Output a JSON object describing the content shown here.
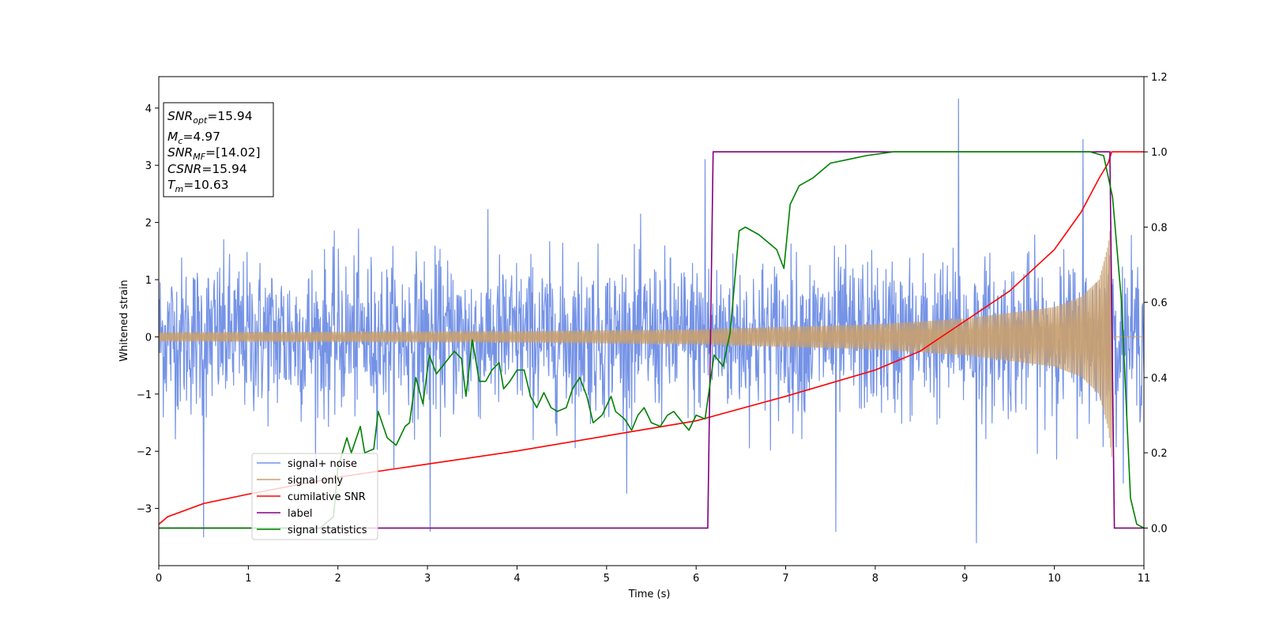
{
  "chart_data": {
    "type": "line",
    "xlabel": "Time (s)",
    "ylabel": "Whitened strain",
    "xlim": [
      0,
      11
    ],
    "ylim": [
      -4.0,
      4.55
    ],
    "ylim_right": [
      -0.1,
      1.2
    ],
    "xticks": [
      "0",
      "1",
      "2",
      "3",
      "4",
      "5",
      "6",
      "7",
      "8",
      "9",
      "10",
      "11"
    ],
    "yticks_left": [
      "−3",
      "−2",
      "−1",
      "0",
      "1",
      "2",
      "3",
      "4"
    ],
    "yticks_right": [
      "0.0",
      "0.2",
      "0.4",
      "0.6",
      "0.8",
      "1.0",
      "1.2"
    ],
    "grid": false,
    "legend_position": "lower-left",
    "annotation": {
      "snr_opt": {
        "base": "SNR",
        "sub": "opt",
        "value": "=15.94"
      },
      "mc": {
        "base": "M",
        "sub": "c",
        "value": "=4.97"
      },
      "snr_mf": {
        "base": "SNR",
        "sub": "MF",
        "value": "=[14.02]"
      },
      "csnr": {
        "base": "CSNR",
        "sub": "",
        "value": "=15.94"
      },
      "tm": {
        "base": "T",
        "sub": "m",
        "value": "=10.63"
      }
    },
    "series": [
      {
        "name": "signal+ noise",
        "color": "#7593e6",
        "axis": "left",
        "x_range": [
          0,
          11
        ],
        "noise_sigma": 0.68,
        "noise_samples": 2200,
        "peak_points": [
          [
            0.5,
            -3.5
          ],
          [
            3.03,
            -3.4
          ],
          [
            7.56,
            -3.4
          ],
          [
            8.93,
            4.16
          ],
          [
            9.13,
            -3.6
          ],
          [
            6.1,
            3.1
          ],
          [
            10.32,
            3.45
          ]
        ]
      },
      {
        "name": "signal only",
        "color": "#c8a070",
        "axis": "left",
        "x_range": [
          0,
          10.64
        ],
        "amplitude": [
          [
            0,
            0.08
          ],
          [
            4.0,
            0.1
          ],
          [
            6.0,
            0.13
          ],
          [
            8.0,
            0.22
          ],
          [
            9.0,
            0.32
          ],
          [
            10.0,
            0.52
          ],
          [
            10.3,
            0.7
          ],
          [
            10.5,
            1.0
          ],
          [
            10.6,
            1.6
          ],
          [
            10.64,
            2.1
          ]
        ]
      },
      {
        "name": "cumilative SNR",
        "color": "#ff0000",
        "axis": "right",
        "points": [
          [
            0,
            0.01
          ],
          [
            0.1,
            0.03
          ],
          [
            0.5,
            0.065
          ],
          [
            1.0,
            0.09
          ],
          [
            2.0,
            0.135
          ],
          [
            3.0,
            0.17
          ],
          [
            4.0,
            0.205
          ],
          [
            5.0,
            0.245
          ],
          [
            6.0,
            0.285
          ],
          [
            7.0,
            0.35
          ],
          [
            8.0,
            0.42
          ],
          [
            8.5,
            0.47
          ],
          [
            9.0,
            0.55
          ],
          [
            9.5,
            0.63
          ],
          [
            10.0,
            0.74
          ],
          [
            10.3,
            0.84
          ],
          [
            10.5,
            0.93
          ],
          [
            10.6,
            0.97
          ],
          [
            10.64,
            1.0
          ],
          [
            11,
            1.0
          ]
        ]
      },
      {
        "name": "label",
        "color": "#800080",
        "axis": "right",
        "points": [
          [
            0,
            0.0
          ],
          [
            6.13,
            0.0
          ],
          [
            6.19,
            1.0
          ],
          [
            10.62,
            1.0
          ],
          [
            10.67,
            0.0
          ],
          [
            11,
            0.0
          ]
        ]
      },
      {
        "name": "signal statistics",
        "color": "#008000",
        "axis": "right",
        "points": [
          [
            0,
            0.0
          ],
          [
            1.8,
            0.0
          ],
          [
            1.95,
            0.03
          ],
          [
            2.0,
            0.16
          ],
          [
            2.1,
            0.24
          ],
          [
            2.15,
            0.2
          ],
          [
            2.25,
            0.27
          ],
          [
            2.3,
            0.2
          ],
          [
            2.4,
            0.21
          ],
          [
            2.45,
            0.31
          ],
          [
            2.55,
            0.24
          ],
          [
            2.65,
            0.22
          ],
          [
            2.75,
            0.27
          ],
          [
            2.8,
            0.28
          ],
          [
            2.87,
            0.4
          ],
          [
            2.95,
            0.33
          ],
          [
            3.02,
            0.46
          ],
          [
            3.1,
            0.41
          ],
          [
            3.2,
            0.44
          ],
          [
            3.3,
            0.47
          ],
          [
            3.38,
            0.45
          ],
          [
            3.43,
            0.35
          ],
          [
            3.5,
            0.5
          ],
          [
            3.58,
            0.39
          ],
          [
            3.65,
            0.39
          ],
          [
            3.72,
            0.42
          ],
          [
            3.8,
            0.44
          ],
          [
            3.85,
            0.37
          ],
          [
            3.92,
            0.39
          ],
          [
            4.0,
            0.42
          ],
          [
            4.08,
            0.42
          ],
          [
            4.15,
            0.35
          ],
          [
            4.22,
            0.32
          ],
          [
            4.3,
            0.36
          ],
          [
            4.38,
            0.32
          ],
          [
            4.45,
            0.31
          ],
          [
            4.55,
            0.32
          ],
          [
            4.62,
            0.37
          ],
          [
            4.7,
            0.4
          ],
          [
            4.78,
            0.35
          ],
          [
            4.85,
            0.28
          ],
          [
            4.95,
            0.3
          ],
          [
            5.05,
            0.35
          ],
          [
            5.1,
            0.31
          ],
          [
            5.2,
            0.29
          ],
          [
            5.28,
            0.26
          ],
          [
            5.35,
            0.3
          ],
          [
            5.42,
            0.32
          ],
          [
            5.5,
            0.28
          ],
          [
            5.6,
            0.27
          ],
          [
            5.68,
            0.3
          ],
          [
            5.75,
            0.31
          ],
          [
            5.85,
            0.28
          ],
          [
            5.92,
            0.26
          ],
          [
            6.0,
            0.3
          ],
          [
            6.1,
            0.29
          ],
          [
            6.2,
            0.46
          ],
          [
            6.3,
            0.43
          ],
          [
            6.38,
            0.52
          ],
          [
            6.48,
            0.79
          ],
          [
            6.55,
            0.8
          ],
          [
            6.7,
            0.78
          ],
          [
            6.8,
            0.76
          ],
          [
            6.9,
            0.74
          ],
          [
            6.98,
            0.69
          ],
          [
            7.05,
            0.86
          ],
          [
            7.15,
            0.91
          ],
          [
            7.3,
            0.93
          ],
          [
            7.5,
            0.97
          ],
          [
            7.7,
            0.98
          ],
          [
            7.9,
            0.99
          ],
          [
            8.2,
            1.0
          ],
          [
            9.0,
            1.0
          ],
          [
            10.4,
            1.0
          ],
          [
            10.55,
            0.99
          ],
          [
            10.65,
            0.88
          ],
          [
            10.75,
            0.6
          ],
          [
            10.85,
            0.08
          ],
          [
            10.92,
            0.01
          ],
          [
            11,
            0.0
          ]
        ]
      }
    ]
  }
}
